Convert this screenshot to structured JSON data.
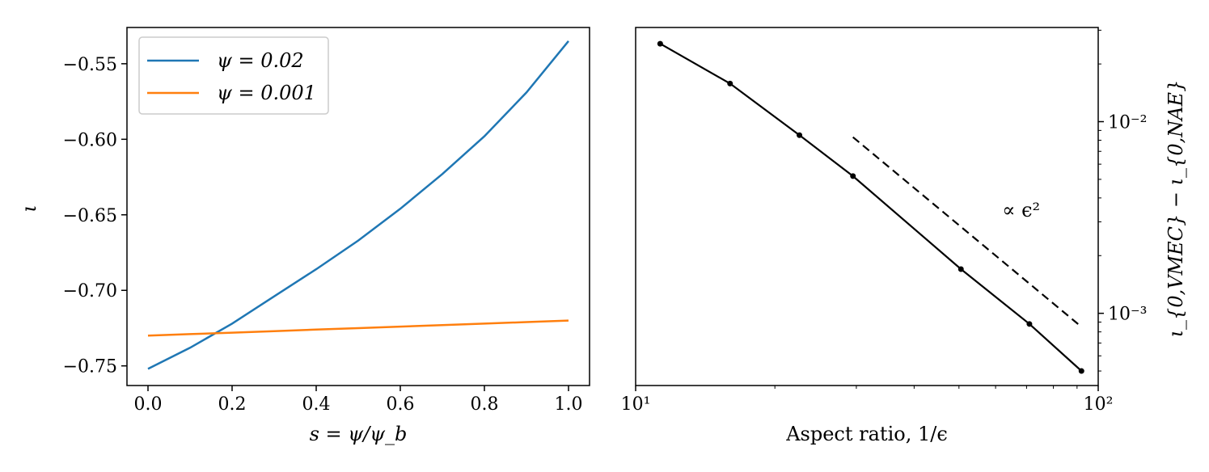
{
  "chart_data": [
    {
      "type": "line",
      "xlabel": "s = ψ/ψ_b",
      "ylabel": "ι",
      "xlim": [
        -0.05,
        1.05
      ],
      "ylim": [
        -0.763,
        -0.526
      ],
      "xticks": [
        0.0,
        0.2,
        0.4,
        0.6,
        0.8,
        1.0
      ],
      "xtick_labels": [
        "0.0",
        "0.2",
        "0.4",
        "0.6",
        "0.8",
        "1.0"
      ],
      "yticks": [
        -0.55,
        -0.6,
        -0.65,
        -0.7,
        -0.75
      ],
      "ytick_labels": [
        "−0.55",
        "−0.60",
        "−0.65",
        "−0.70",
        "−0.75"
      ],
      "legend_position": "top-left",
      "grid": false,
      "x": [
        0.0,
        0.1,
        0.2,
        0.3,
        0.4,
        0.5,
        0.6,
        0.7,
        0.8,
        0.9,
        1.0
      ],
      "series": [
        {
          "name": "ψ = 0.02",
          "color": "#1f77b4",
          "values": [
            -0.752,
            -0.738,
            -0.722,
            -0.704,
            -0.686,
            -0.667,
            -0.646,
            -0.623,
            -0.598,
            -0.569,
            -0.535
          ]
        },
        {
          "name": "ψ = 0.001",
          "color": "#ff7f0e",
          "values": [
            -0.73,
            -0.729,
            -0.728,
            -0.727,
            -0.726,
            -0.725,
            -0.724,
            -0.723,
            -0.722,
            -0.721,
            -0.72
          ]
        }
      ]
    },
    {
      "type": "line",
      "xlabel": "Aspect ratio, 1/ϵ",
      "ylabel": "ι_{0,VMEC} − ι_{0,NAE}",
      "xscale": "log",
      "yscale": "log",
      "xlim": [
        10,
        100
      ],
      "ylim": [
        0.00042,
        0.031
      ],
      "xticks": [
        10,
        100
      ],
      "xtick_labels": [
        "10¹",
        "10²"
      ],
      "yticks": [
        0.001,
        0.01
      ],
      "ytick_labels": [
        "10⁻³",
        "10⁻²"
      ],
      "yaxis_position": "right",
      "grid": false,
      "series": [
        {
          "name": "",
          "color": "#000000",
          "style": "solid",
          "markers": true,
          "x": [
            11.3,
            16.0,
            22.6,
            29.5,
            50.5,
            71.0,
            92.0
          ],
          "y": [
            0.0255,
            0.0158,
            0.0085,
            0.0052,
            0.0017,
            0.00088,
            0.0005
          ]
        },
        {
          "name": "",
          "color": "#000000",
          "style": "dashed",
          "markers": false,
          "x": [
            29.5,
            92.0
          ],
          "y": [
            0.0083,
            0.00085
          ]
        }
      ],
      "annotation": {
        "text": "∝ ϵ²",
        "x": 62,
        "y": 0.0032
      }
    }
  ]
}
